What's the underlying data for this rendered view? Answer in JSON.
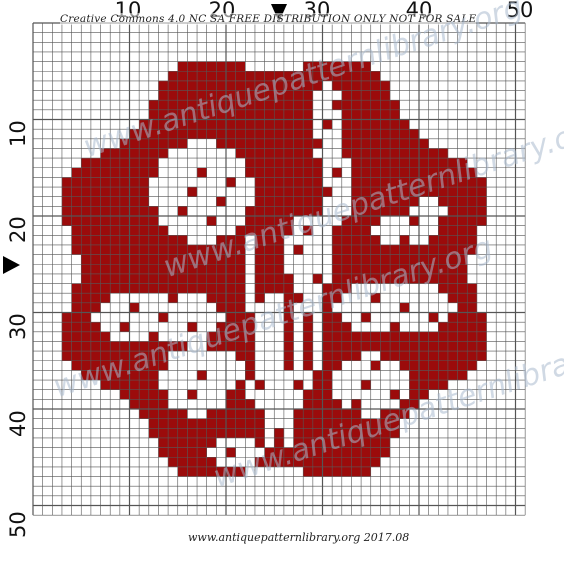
{
  "notice": "Creative Commons 4.0 NC SA FREE DISTRIBUTION ONLY NOT FOR SALE",
  "footer": "www.antiquepatternlibrary.org 2017.08",
  "watermark": "www.antiquepatternlibrary.org",
  "top_axis_labels": [
    "10",
    "20",
    "30",
    "40",
    "50"
  ],
  "left_axis_labels": [
    "10",
    "20",
    "30",
    "40",
    "50"
  ],
  "colors": {
    "fill": "#9b0b0b",
    "grid_line": "#555555",
    "empty": "#ffffff",
    "marker": "#000000"
  },
  "grid": {
    "columns": 51,
    "rows": 51,
    "medallion_shape": "scalloped octagon",
    "motif": "rose with buds and leaves"
  }
}
